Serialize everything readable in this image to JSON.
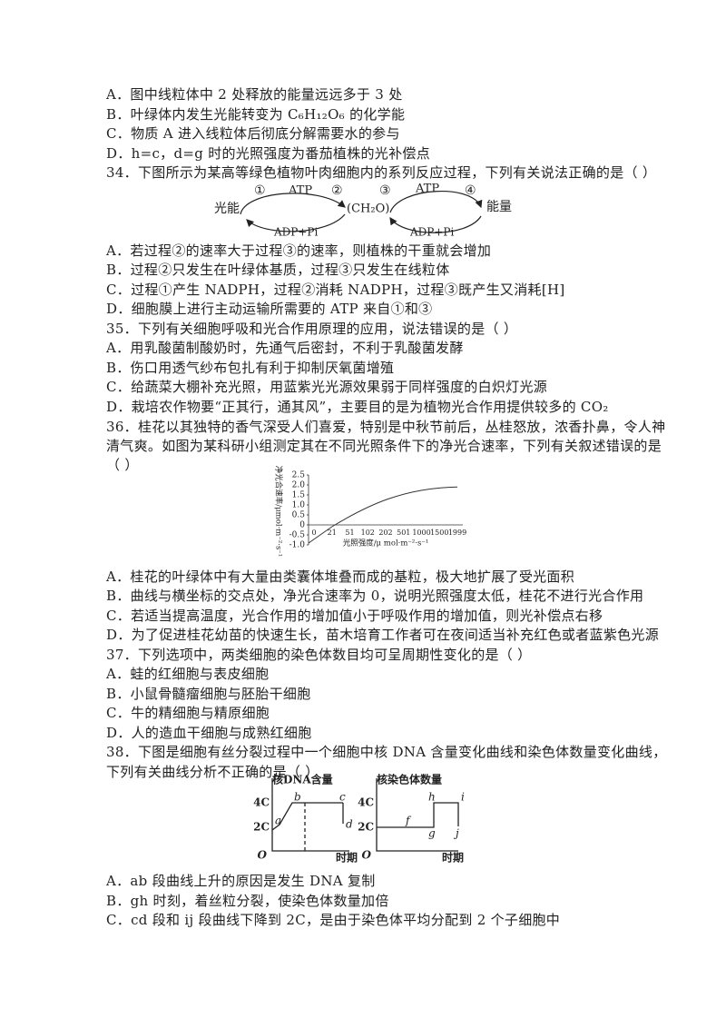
{
  "fragment_options": [
    "A．图中线粒体中 2 处释放的能量远远多于 3 处",
    "B．叶绿体内发生光能转变为 C₆H₁₂O₆ 的化学能",
    "C．物质 A 进入线粒体后彻底分解需要水的参与",
    "D．h=c，d=g 时的光照强度为番茄植株的光补偿点"
  ],
  "questions": [
    {
      "stem": [
        "34．下图所示为某高等绿色植物叶肉细胞内的系列反应过程，下列有关说法正确的是（ ）"
      ],
      "figure": {
        "labels": [
          "①",
          "ATP",
          "②",
          "③",
          "ATP",
          "④",
          "光能",
          "(CH₂O)",
          "能量",
          "ADP+Pi",
          "ADP+Pi"
        ]
      },
      "options": [
        "A．若过程②的速率大于过程③的速率，则植株的干重就会增加",
        "B．过程②只发生在叶绿体基质，过程③只发生在线粒体",
        "C．过程①产生 NADPH，过程②消耗 NADPH，过程③既产生又消耗[H]",
        "D．细胞膜上进行主动运输所需要的 ATP 来自①和③"
      ]
    },
    {
      "stem": [
        "35．下列有关细胞呼吸和光合作用原理的应用，说法错误的是（ ）"
      ],
      "options": [
        "A．用乳酸菌制酸奶时，先通气后密封，不利于乳酸菌发酵",
        "B．伤口用透气纱布包扎有利于抑制厌氧菌增殖",
        "C．给蔬菜大棚补充光照，用蓝紫光光源效果弱于同样强度的白炽灯光源",
        "D．栽培农作物要“正其行，通其风”，主要目的是为植物光合作用提供较多的 CO₂"
      ]
    },
    {
      "stem": [
        "36．桂花以其独特的香气深受人们喜爱，特别是中秋节前后，丛桂怒放，浓香扑鼻，令人神",
        "清气爽。如图为某科研小组测定其在不同光照条件下的净光合速率，下列有关叙述错误的是",
        "（ ）"
      ],
      "figure": {
        "y_label": "净光合速率/μmol·m⁻²·s⁻¹",
        "y_ticks": [
          "2.5",
          "2.0",
          "1.5",
          "1.0",
          "0.5",
          "0",
          "-0.5",
          "-1.0"
        ],
        "x_ticks": [
          "0",
          "21",
          "51",
          "102",
          "202",
          "501",
          "1000",
          "1500",
          "1999"
        ],
        "x_label": "光照强度/μ mol·m⁻²·s⁻¹"
      },
      "options": [
        "A．桂花的叶绿体中有大量由类囊体堆叠而成的基粒，极大地扩展了受光面积",
        "B．曲线与横坐标的交点处，净光合速率为 0，说明光照强度太低，桂花不进行光合作用",
        "C．若适当提高温度，光合作用的增加值小于呼吸作用的增加值，则光补偿点右移",
        "D．为了促进桂花幼苗的快速生长，苗木培育工作者可在夜间适当补充红色或者蓝紫色光源"
      ]
    },
    {
      "stem": [
        "37．下列选项中，两类细胞的染色体数目均可呈周期性变化的是（ ）"
      ],
      "options": [
        "A．蛙的红细胞与表皮细胞",
        "B．小鼠骨髓瘤细胞与胚胎干细胞",
        "C．牛的精细胞与精原细胞",
        "D．人的造血干细胞与成熟红细胞"
      ]
    },
    {
      "stem": [
        "38．下图是细胞有丝分裂过程中一个细胞中核 DNA 含量变化曲线和染色体数量变化曲线，",
        "下列有关曲线分析不正确的是（ ）"
      ],
      "figure": {
        "left": {
          "title": "核DNA含量",
          "y_ticks": [
            "4C",
            "2C"
          ],
          "origin": "O",
          "x_label": "时期",
          "points": [
            "a",
            "b",
            "c",
            "d"
          ]
        },
        "right": {
          "title": "核染色体数量",
          "y_ticks": [
            "4C",
            "2C"
          ],
          "origin": "O",
          "x_label": "时期",
          "points": [
            "f",
            "g",
            "h",
            "i",
            "j"
          ]
        }
      },
      "options": [
        "A．ab 段曲线上升的原因是发生 DNA 复制",
        "B．gh 时刻，着丝粒分裂，使染色体数量加倍",
        "C．cd 段和 ij 段曲线下降到 2C，是由于染色体平均分配到 2 个子细胞中"
      ]
    }
  ]
}
